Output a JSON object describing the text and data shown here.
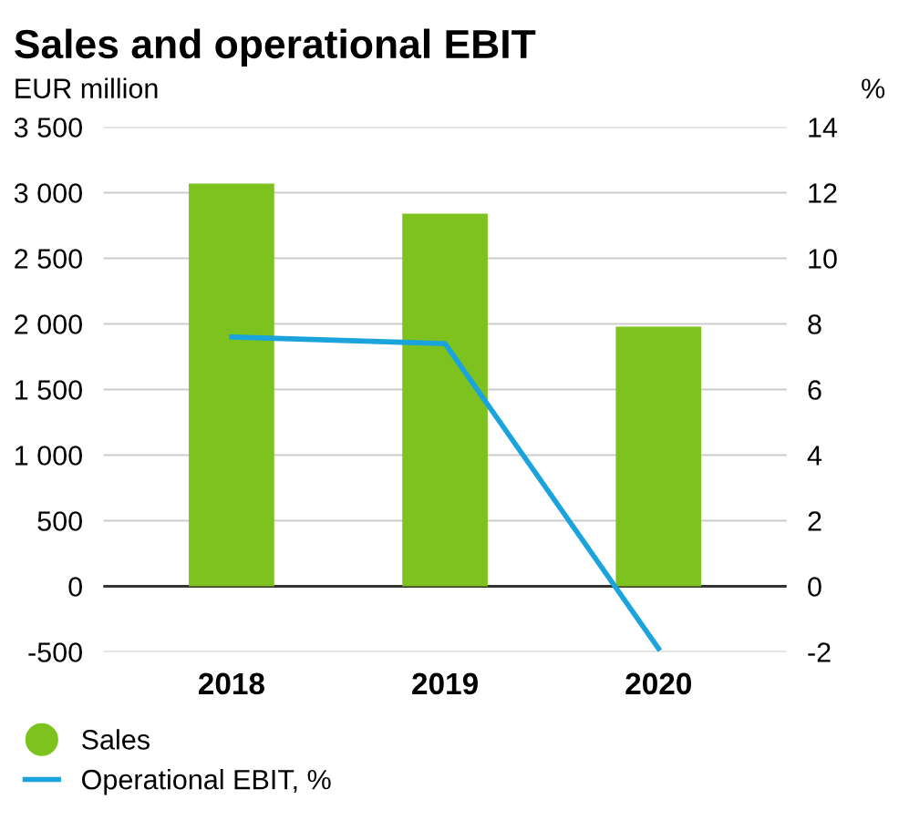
{
  "chart_data": {
    "type": "bar",
    "title": "Sales and operational EBIT",
    "ylabel": "EUR million",
    "y2label": "%",
    "categories": [
      "2018",
      "2019",
      "2020"
    ],
    "series": [
      {
        "name": "Sales",
        "color": "#7dc21e",
        "values": [
          3070,
          2840,
          1980
        ]
      },
      {
        "name": "Operational EBIT, %",
        "type": "line",
        "axis": "y2",
        "color": "#1aa3dc",
        "values": [
          7.6,
          7.4,
          -1.9
        ],
        "marker": "none",
        "line_style": "solid"
      }
    ],
    "ylim": [
      -500,
      3500
    ],
    "yticks": [
      -500,
      0,
      500,
      {
        "value": 1000,
        "label": "1 000"
      },
      {
        "value": 1500,
        "label": "1 500"
      },
      {
        "value": 2000,
        "label": "2 000"
      },
      {
        "value": 2500,
        "label": "2 500"
      },
      {
        "value": 3000,
        "label": "3 000"
      },
      {
        "value": 3500,
        "label": "3 500"
      }
    ],
    "y2lim": [
      -2,
      14
    ],
    "y2ticks": [
      -2,
      0,
      2,
      4,
      6,
      8,
      10,
      12,
      14
    ],
    "grid": "y",
    "legend": "bottom"
  }
}
